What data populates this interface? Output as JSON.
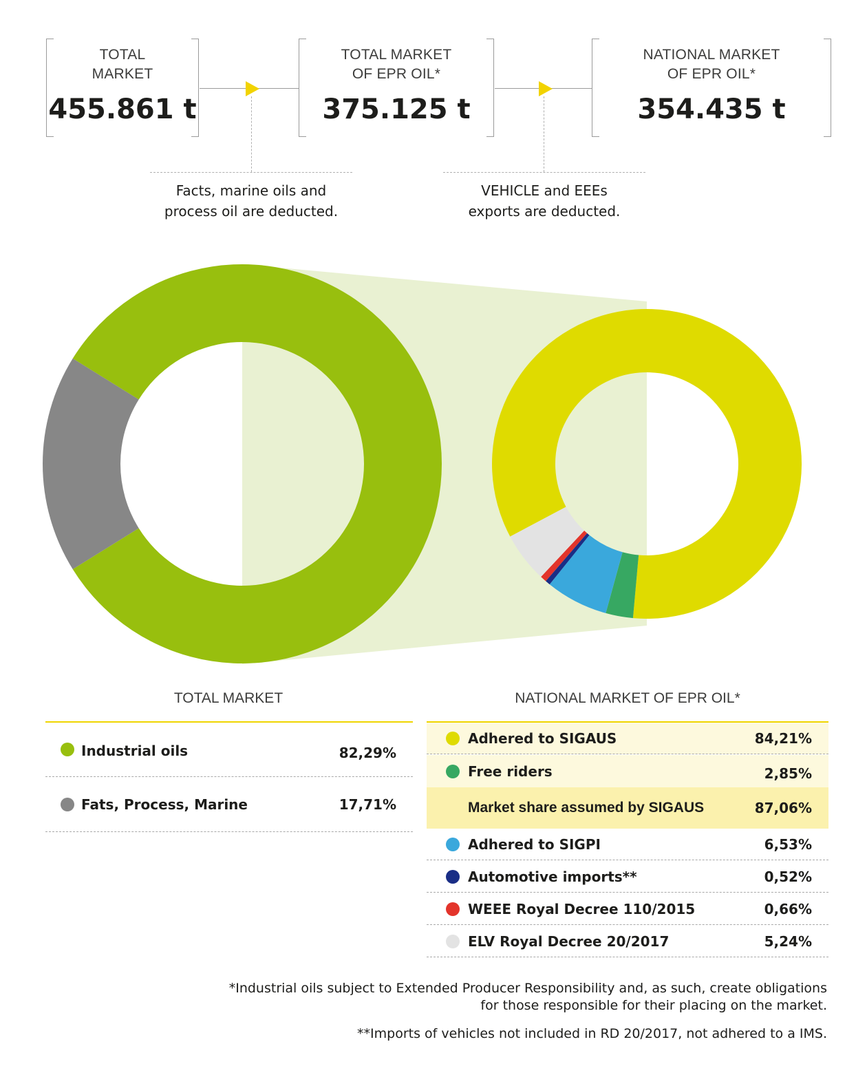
{
  "flow": {
    "boxes": [
      {
        "label_1": "TOTAL",
        "label_2": "MARKET",
        "value": "455.861 t"
      },
      {
        "label_1": "TOTAL MARKET",
        "label_2": "OF EPR OIL*",
        "value": "375.125 t"
      },
      {
        "label_1": "NATIONAL MARKET",
        "label_2": "OF EPR OIL*",
        "value": "354.435 t"
      }
    ],
    "notes": [
      {
        "line_1": "Facts, marine oils and",
        "line_2": "process oil are deducted."
      },
      {
        "line_1": "VEHICLE and EEEs",
        "line_2": "exports are deducted."
      }
    ],
    "arrow_color": "#f2d300"
  },
  "chart_data": [
    {
      "type": "pie",
      "title": "TOTAL MARKET",
      "donut": true,
      "slices": [
        {
          "name": "Industrial oils",
          "value": 82.29,
          "label": "82,29%",
          "color": "#98bf0e"
        },
        {
          "name": "Fats, Process, Marine",
          "value": 17.71,
          "label": "17,71%",
          "color": "#878787"
        }
      ]
    },
    {
      "type": "pie",
      "title": "NATIONAL MARKET OF EPR OIL*",
      "donut": true,
      "slices": [
        {
          "name": "Adhered to SIGAUS",
          "value": 84.21,
          "label": "84,21%",
          "color": "#dfdb00"
        },
        {
          "name": "Free riders",
          "value": 2.85,
          "label": "2,85%",
          "color": "#37a862"
        },
        {
          "name": "Adhered to SIGPI",
          "value": 6.53,
          "label": "6,53%",
          "color": "#3aa8dc"
        },
        {
          "name": "Automotive imports**",
          "value": 0.52,
          "label": "0,52%",
          "color": "#1a2e86"
        },
        {
          "name": "WEEE Royal Decree 110/2015",
          "value": 0.66,
          "label": "0,66%",
          "color": "#e3342b"
        },
        {
          "name": "ELV Royal Decree 20/2017",
          "value": 5.24,
          "label": "5,24%",
          "color": "#e3e3e3"
        }
      ],
      "summary": {
        "name": "Market share assumed by SIGAUS",
        "label": "87,06%"
      }
    }
  ],
  "connector_color": "#e9f1d2",
  "footnotes": {
    "note_1_line_1": "*Industrial oils subject to Extended Producer Responsibility and, as such, create obligations",
    "note_1_line_2": "for those responsible for their placing on the market.",
    "note_2": "**Imports of vehicles not included in RD 20/2017, not adhered to a IMS."
  }
}
